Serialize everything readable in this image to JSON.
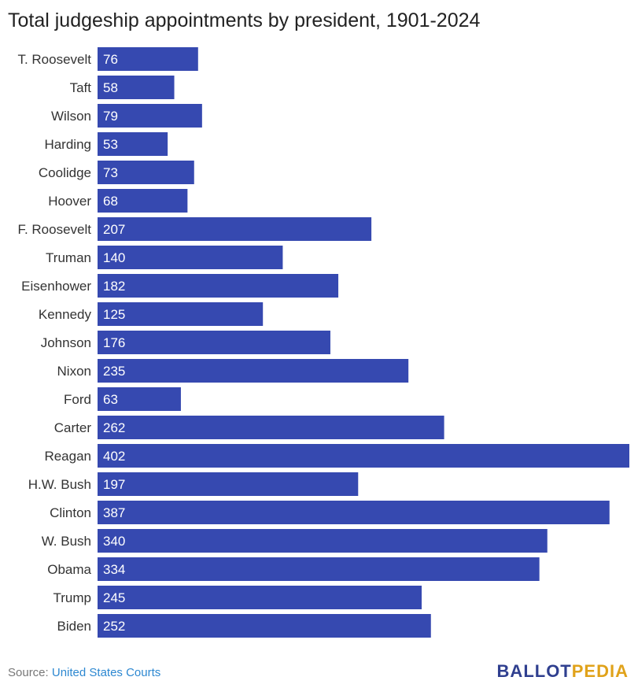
{
  "title": "Total judgeship appointments by president, 1901-2024",
  "source": {
    "prefix": "Source: ",
    "link_text": "United States Courts"
  },
  "logo": {
    "part1": "BALLOT",
    "part2": "PEDIA",
    "color1": "#2f3f8f",
    "color2": "#e0a21a"
  },
  "colors": {
    "bar": "#3649b0"
  },
  "chart_data": {
    "type": "bar",
    "orientation": "horizontal",
    "title": "Total judgeship appointments by president, 1901-2024",
    "xlabel": "",
    "ylabel": "",
    "grid": false,
    "xlim": [
      0,
      402
    ],
    "categories": [
      "T. Roosevelt",
      "Taft",
      "Wilson",
      "Harding",
      "Coolidge",
      "Hoover",
      "F. Roosevelt",
      "Truman",
      "Eisenhower",
      "Kennedy",
      "Johnson",
      "Nixon",
      "Ford",
      "Carter",
      "Reagan",
      "H.W. Bush",
      "Clinton",
      "W. Bush",
      "Obama",
      "Trump",
      "Biden"
    ],
    "values": [
      76,
      58,
      79,
      53,
      73,
      68,
      207,
      140,
      182,
      125,
      176,
      235,
      63,
      262,
      402,
      197,
      387,
      340,
      334,
      245,
      252
    ]
  }
}
